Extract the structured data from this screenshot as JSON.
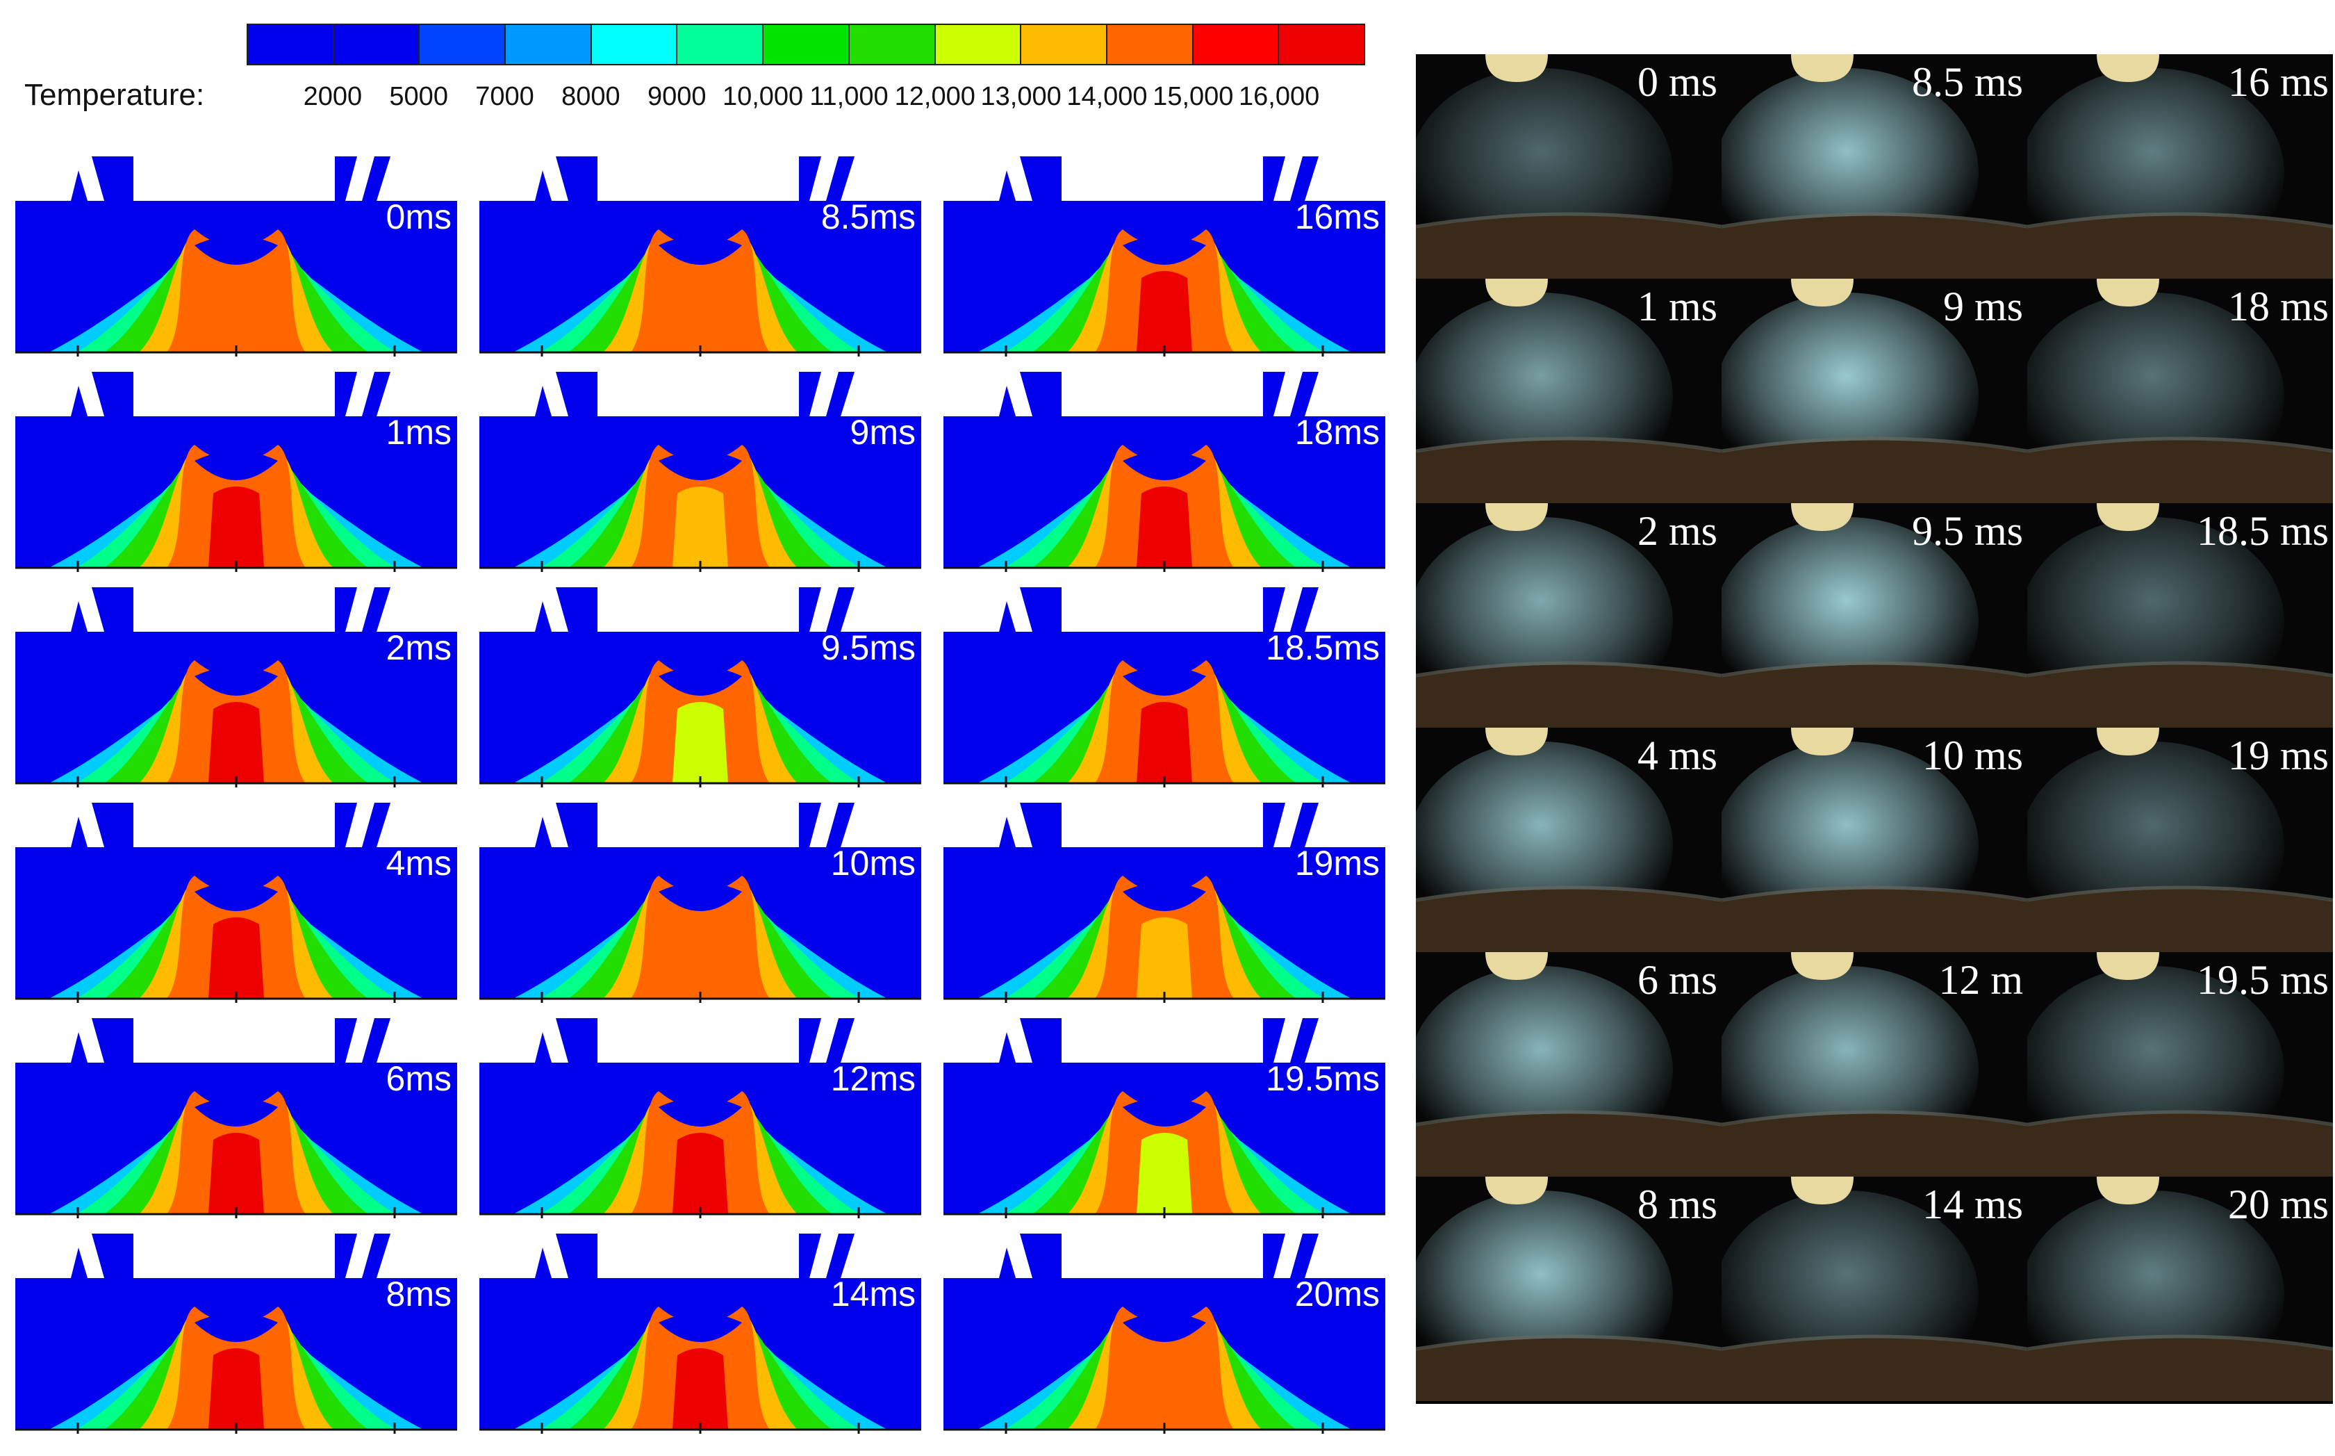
{
  "legend": {
    "title": "Temperature:",
    "ticks": [
      "2000",
      "5000",
      "7000",
      "8000",
      "9000",
      "10,000",
      "11,000",
      "12,000",
      "13,000",
      "14,000",
      "15,000",
      "16,000"
    ],
    "colors": [
      "#0000ee",
      "#0000ee",
      "#0044ff",
      "#0099ff",
      "#00ffff",
      "#00ff99",
      "#00e400",
      "#22dd00",
      "#ccff00",
      "#ffbb00",
      "#ff6600",
      "#ff0000",
      "#ee0000"
    ]
  },
  "simulation": {
    "columns": [
      [
        "0ms",
        "1ms",
        "2ms",
        "4ms",
        "6ms",
        "8ms"
      ],
      [
        "8.5ms",
        "9ms",
        "9.5ms",
        "10ms",
        "12ms",
        "14ms"
      ],
      [
        "16ms",
        "18ms",
        "18.5ms",
        "19ms",
        "19.5ms",
        "20ms"
      ]
    ],
    "core_colors": [
      [
        "#ff6600",
        "#ee0000",
        "#ee0000",
        "#ee0000",
        "#ee0000",
        "#ee0000"
      ],
      [
        "#ff6600",
        "#ffbb00",
        "#ccff00",
        "#ff6600",
        "#ee0000",
        "#ee0000"
      ],
      [
        "#ee0000",
        "#ee0000",
        "#ee0000",
        "#ffbb00",
        "#ccff00",
        "#ff6600"
      ]
    ],
    "colors": {
      "background": "#0000ee",
      "band1": "#00ccff",
      "band2": "#00ff88",
      "band3": "#22dd00",
      "band4": "#ffbb00",
      "band5": "#ff6600"
    }
  },
  "photos": {
    "columns": [
      [
        "0 ms",
        "1 ms",
        "2 ms",
        "4 ms",
        "6 ms",
        "8 ms"
      ],
      [
        "8.5 ms",
        "9 ms",
        "9.5 ms",
        "10 ms",
        "12 m",
        "14 ms"
      ],
      [
        "16 ms",
        "18 ms",
        "18.5 ms",
        "19 ms",
        "19.5 ms",
        "20 ms"
      ]
    ],
    "colors": {
      "glow": "#a8e0e6",
      "electrode": "#e8d9a0",
      "ground": "#3a2a1a"
    }
  }
}
